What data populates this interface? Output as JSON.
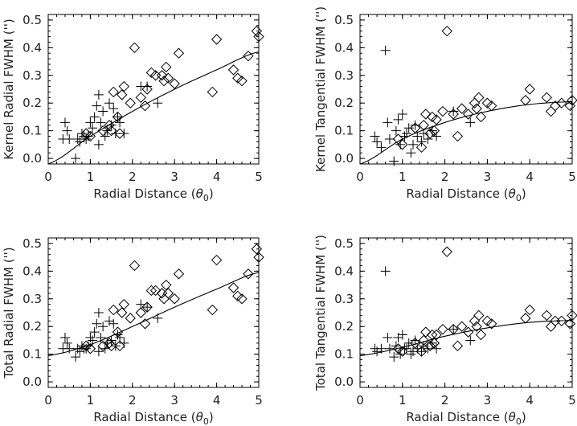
{
  "chart_data": [
    {
      "type": "scatter",
      "xlabel": "Radial Distance (θ0)",
      "ylabel": "Kernel Radial FWHM ('')",
      "xlim": [
        0,
        5
      ],
      "ylim": [
        -0.02,
        0.52
      ],
      "xticks": [
        0,
        1,
        2,
        3,
        4,
        5
      ],
      "yticks": [
        0.0,
        0.1,
        0.2,
        0.3,
        0.4,
        0.5
      ],
      "grid": false,
      "fit": {
        "x": [
          0,
          1,
          2,
          3,
          4,
          5
        ],
        "y": [
          -0.02,
          0.08,
          0.17,
          0.25,
          0.32,
          0.385
        ]
      },
      "series": [
        {
          "marker": "plus",
          "points": [
            [
              0.35,
              0.07
            ],
            [
              0.4,
              0.13
            ],
            [
              0.45,
              0.1
            ],
            [
              0.5,
              0.07
            ],
            [
              0.65,
              0.0
            ],
            [
              0.7,
              0.07
            ],
            [
              0.75,
              0.06
            ],
            [
              0.8,
              0.09
            ],
            [
              0.85,
              0.08
            ],
            [
              0.9,
              0.07
            ],
            [
              0.95,
              0.08
            ],
            [
              1.0,
              0.13
            ],
            [
              1.05,
              0.11
            ],
            [
              1.1,
              0.15
            ],
            [
              1.15,
              0.19
            ],
            [
              1.2,
              0.23
            ],
            [
              1.2,
              0.05
            ],
            [
              1.25,
              0.13
            ],
            [
              1.3,
              0.17
            ],
            [
              1.35,
              0.08
            ],
            [
              1.4,
              0.1
            ],
            [
              1.45,
              0.2
            ],
            [
              1.5,
              0.12
            ],
            [
              1.55,
              0.18
            ],
            [
              1.6,
              0.09
            ],
            [
              1.65,
              0.15
            ],
            [
              1.7,
              0.13
            ],
            [
              1.8,
              0.09
            ],
            [
              2.2,
              0.26
            ],
            [
              2.35,
              0.26
            ],
            [
              2.6,
              0.2
            ]
          ]
        },
        {
          "marker": "diamond",
          "points": [
            [
              0.9,
              0.09
            ],
            [
              1.0,
              0.08
            ],
            [
              1.3,
              0.1
            ],
            [
              1.45,
              0.12
            ],
            [
              1.5,
              0.1
            ],
            [
              1.55,
              0.24
            ],
            [
              1.65,
              0.15
            ],
            [
              1.7,
              0.09
            ],
            [
              1.75,
              0.23
            ],
            [
              1.8,
              0.26
            ],
            [
              1.95,
              0.2
            ],
            [
              2.05,
              0.4
            ],
            [
              2.2,
              0.22
            ],
            [
              2.3,
              0.19
            ],
            [
              2.35,
              0.25
            ],
            [
              2.45,
              0.31
            ],
            [
              2.55,
              0.3
            ],
            [
              2.7,
              0.3
            ],
            [
              2.75,
              0.28
            ],
            [
              2.8,
              0.33
            ],
            [
              2.85,
              0.29
            ],
            [
              3.0,
              0.27
            ],
            [
              3.1,
              0.38
            ],
            [
              3.9,
              0.24
            ],
            [
              4.0,
              0.43
            ],
            [
              4.4,
              0.32
            ],
            [
              4.5,
              0.29
            ],
            [
              4.6,
              0.28
            ],
            [
              4.75,
              0.37
            ],
            [
              4.95,
              0.46
            ],
            [
              5.0,
              0.44
            ]
          ]
        }
      ]
    },
    {
      "type": "scatter",
      "xlabel": "Radial Distance (θ0)",
      "ylabel": "Kernel Tangential FWHM ('')",
      "xlim": [
        0,
        5
      ],
      "ylim": [
        -0.02,
        0.52
      ],
      "xticks": [
        0,
        1,
        2,
        3,
        4,
        5
      ],
      "yticks": [
        0.0,
        0.1,
        0.2,
        0.3,
        0.4,
        0.5
      ],
      "grid": false,
      "fit": {
        "x": [
          0,
          1,
          2,
          3,
          4,
          5
        ],
        "y": [
          -0.02,
          0.07,
          0.13,
          0.17,
          0.195,
          0.205
        ]
      },
      "series": [
        {
          "marker": "plus",
          "points": [
            [
              0.35,
              0.08
            ],
            [
              0.4,
              0.06
            ],
            [
              0.5,
              0.04
            ],
            [
              0.6,
              0.39
            ],
            [
              0.65,
              0.13
            ],
            [
              0.7,
              0.07
            ],
            [
              0.8,
              -0.01
            ],
            [
              0.85,
              0.1
            ],
            [
              0.9,
              0.14
            ],
            [
              0.95,
              0.05
            ],
            [
              1.0,
              0.16
            ],
            [
              1.05,
              0.08
            ],
            [
              1.1,
              0.09
            ],
            [
              1.15,
              0.11
            ],
            [
              1.2,
              0.02
            ],
            [
              1.25,
              0.05
            ],
            [
              1.3,
              0.12
            ],
            [
              1.35,
              0.08
            ],
            [
              1.45,
              0.06
            ],
            [
              1.5,
              0.09
            ],
            [
              1.6,
              0.07
            ],
            [
              1.7,
              0.1
            ],
            [
              1.8,
              0.08
            ],
            [
              2.2,
              0.17
            ],
            [
              2.6,
              0.13
            ]
          ]
        },
        {
          "marker": "diamond",
          "points": [
            [
              0.9,
              0.07
            ],
            [
              1.0,
              0.05
            ],
            [
              1.3,
              0.11
            ],
            [
              1.45,
              0.04
            ],
            [
              1.5,
              0.12
            ],
            [
              1.55,
              0.16
            ],
            [
              1.65,
              0.09
            ],
            [
              1.7,
              0.15
            ],
            [
              1.75,
              0.1
            ],
            [
              1.8,
              0.14
            ],
            [
              1.95,
              0.17
            ],
            [
              2.05,
              0.46
            ],
            [
              2.2,
              0.16
            ],
            [
              2.3,
              0.08
            ],
            [
              2.4,
              0.18
            ],
            [
              2.55,
              0.16
            ],
            [
              2.7,
              0.2
            ],
            [
              2.75,
              0.18
            ],
            [
              2.8,
              0.22
            ],
            [
              2.85,
              0.15
            ],
            [
              3.0,
              0.2
            ],
            [
              3.1,
              0.19
            ],
            [
              3.9,
              0.21
            ],
            [
              4.0,
              0.25
            ],
            [
              4.4,
              0.22
            ],
            [
              4.5,
              0.17
            ],
            [
              4.6,
              0.19
            ],
            [
              4.75,
              0.2
            ],
            [
              4.95,
              0.19
            ],
            [
              5.0,
              0.21
            ]
          ]
        }
      ]
    },
    {
      "type": "scatter",
      "xlabel": "Radial Distance (θ0)",
      "ylabel": "Total Radial FWHM ('')",
      "xlim": [
        0,
        5
      ],
      "ylim": [
        -0.02,
        0.52
      ],
      "xticks": [
        0,
        1,
        2,
        3,
        4,
        5
      ],
      "yticks": [
        0.0,
        0.1,
        0.2,
        0.3,
        0.4,
        0.5
      ],
      "grid": false,
      "fit": {
        "x": [
          0,
          1,
          2,
          3,
          4,
          5
        ],
        "y": [
          0.095,
          0.135,
          0.2,
          0.27,
          0.335,
          0.395
        ]
      },
      "series": [
        {
          "marker": "plus",
          "points": [
            [
              0.35,
              0.12
            ],
            [
              0.4,
              0.16
            ],
            [
              0.45,
              0.14
            ],
            [
              0.5,
              0.12
            ],
            [
              0.65,
              0.09
            ],
            [
              0.7,
              0.12
            ],
            [
              0.75,
              0.11
            ],
            [
              0.8,
              0.13
            ],
            [
              0.85,
              0.12
            ],
            [
              0.9,
              0.12
            ],
            [
              0.95,
              0.13
            ],
            [
              1.0,
              0.16
            ],
            [
              1.05,
              0.15
            ],
            [
              1.1,
              0.18
            ],
            [
              1.15,
              0.21
            ],
            [
              1.2,
              0.25
            ],
            [
              1.2,
              0.11
            ],
            [
              1.25,
              0.16
            ],
            [
              1.3,
              0.2
            ],
            [
              1.35,
              0.12
            ],
            [
              1.4,
              0.14
            ],
            [
              1.45,
              0.22
            ],
            [
              1.5,
              0.15
            ],
            [
              1.55,
              0.21
            ],
            [
              1.6,
              0.13
            ],
            [
              1.65,
              0.17
            ],
            [
              1.7,
              0.16
            ],
            [
              1.8,
              0.14
            ],
            [
              2.2,
              0.28
            ],
            [
              2.35,
              0.27
            ],
            [
              2.6,
              0.23
            ]
          ]
        },
        {
          "marker": "diamond",
          "points": [
            [
              0.9,
              0.13
            ],
            [
              1.0,
              0.12
            ],
            [
              1.3,
              0.13
            ],
            [
              1.45,
              0.14
            ],
            [
              1.5,
              0.13
            ],
            [
              1.55,
              0.26
            ],
            [
              1.65,
              0.18
            ],
            [
              1.7,
              0.13
            ],
            [
              1.75,
              0.25
            ],
            [
              1.8,
              0.28
            ],
            [
              1.95,
              0.23
            ],
            [
              2.05,
              0.42
            ],
            [
              2.2,
              0.25
            ],
            [
              2.3,
              0.21
            ],
            [
              2.35,
              0.27
            ],
            [
              2.45,
              0.33
            ],
            [
              2.55,
              0.33
            ],
            [
              2.7,
              0.32
            ],
            [
              2.75,
              0.3
            ],
            [
              2.8,
              0.35
            ],
            [
              2.85,
              0.32
            ],
            [
              3.0,
              0.3
            ],
            [
              3.1,
              0.39
            ],
            [
              3.9,
              0.26
            ],
            [
              4.0,
              0.44
            ],
            [
              4.4,
              0.34
            ],
            [
              4.5,
              0.31
            ],
            [
              4.6,
              0.3
            ],
            [
              4.75,
              0.39
            ],
            [
              4.95,
              0.48
            ],
            [
              5.0,
              0.45
            ]
          ]
        }
      ]
    },
    {
      "type": "scatter",
      "xlabel": "Radial Distance (θ0)",
      "ylabel": "Total Tangential FWHM ('')",
      "xlim": [
        0,
        5
      ],
      "ylim": [
        -0.02,
        0.52
      ],
      "xticks": [
        0,
        1,
        2,
        3,
        4,
        5
      ],
      "yticks": [
        0.0,
        0.1,
        0.2,
        0.3,
        0.4,
        0.5
      ],
      "grid": false,
      "fit": {
        "x": [
          0,
          1,
          2,
          3,
          4,
          5
        ],
        "y": [
          0.095,
          0.125,
          0.165,
          0.195,
          0.215,
          0.222
        ]
      },
      "series": [
        {
          "marker": "plus",
          "points": [
            [
              0.35,
              0.12
            ],
            [
              0.4,
              0.11
            ],
            [
              0.5,
              0.12
            ],
            [
              0.6,
              0.4
            ],
            [
              0.65,
              0.16
            ],
            [
              0.7,
              0.12
            ],
            [
              0.8,
              0.09
            ],
            [
              0.85,
              0.13
            ],
            [
              0.9,
              0.16
            ],
            [
              0.95,
              0.1
            ],
            [
              1.0,
              0.17
            ],
            [
              1.05,
              0.12
            ],
            [
              1.1,
              0.12
            ],
            [
              1.15,
              0.14
            ],
            [
              1.2,
              0.1
            ],
            [
              1.25,
              0.11
            ],
            [
              1.3,
              0.15
            ],
            [
              1.35,
              0.12
            ],
            [
              1.45,
              0.11
            ],
            [
              1.5,
              0.13
            ],
            [
              1.6,
              0.12
            ],
            [
              1.7,
              0.14
            ],
            [
              1.8,
              0.12
            ],
            [
              2.2,
              0.19
            ],
            [
              2.6,
              0.15
            ]
          ]
        },
        {
          "marker": "diamond",
          "points": [
            [
              0.9,
              0.12
            ],
            [
              1.0,
              0.11
            ],
            [
              1.3,
              0.14
            ],
            [
              1.45,
              0.11
            ],
            [
              1.5,
              0.15
            ],
            [
              1.55,
              0.18
            ],
            [
              1.65,
              0.13
            ],
            [
              1.7,
              0.17
            ],
            [
              1.75,
              0.14
            ],
            [
              1.8,
              0.17
            ],
            [
              1.95,
              0.19
            ],
            [
              2.05,
              0.47
            ],
            [
              2.2,
              0.19
            ],
            [
              2.3,
              0.13
            ],
            [
              2.4,
              0.2
            ],
            [
              2.55,
              0.18
            ],
            [
              2.7,
              0.22
            ],
            [
              2.75,
              0.2
            ],
            [
              2.8,
              0.24
            ],
            [
              2.85,
              0.17
            ],
            [
              3.0,
              0.22
            ],
            [
              3.1,
              0.21
            ],
            [
              3.9,
              0.23
            ],
            [
              4.0,
              0.26
            ],
            [
              4.4,
              0.24
            ],
            [
              4.5,
              0.2
            ],
            [
              4.6,
              0.22
            ],
            [
              4.75,
              0.22
            ],
            [
              4.95,
              0.21
            ],
            [
              5.0,
              0.24
            ]
          ]
        }
      ]
    }
  ]
}
